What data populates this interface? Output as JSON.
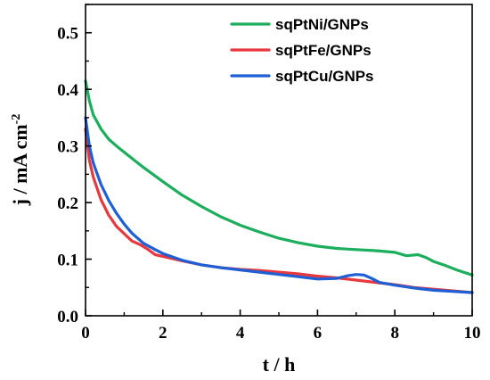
{
  "chart_data": {
    "type": "line",
    "xlabel": "t / h",
    "ylabel_main": "j / mA cm",
    "ylabel_sup": "-2",
    "xlim": [
      0,
      10
    ],
    "ylim": [
      0.0,
      0.55
    ],
    "xticks": [
      0,
      2,
      4,
      6,
      8,
      10
    ],
    "yticks": [
      0.0,
      0.1,
      0.2,
      0.3,
      0.4,
      0.5
    ],
    "xtick_labels": [
      "0",
      "2",
      "4",
      "6",
      "8",
      "10"
    ],
    "ytick_labels": [
      "0.0",
      "0.1",
      "0.2",
      "0.3",
      "0.4",
      "0.5"
    ],
    "grid": false,
    "legend_position": "top-right",
    "series": [
      {
        "name": "sqPtNi/GNPs",
        "color": "#1cae5c",
        "x": [
          0,
          0.1,
          0.2,
          0.4,
          0.6,
          0.8,
          1.0,
          1.5,
          2.0,
          2.5,
          3.0,
          3.5,
          4.0,
          4.5,
          5.0,
          5.5,
          6.0,
          6.5,
          7.0,
          7.5,
          8.0,
          8.3,
          8.6,
          8.8,
          9.0,
          9.3,
          9.6,
          10.0
        ],
        "y": [
          0.415,
          0.38,
          0.355,
          0.33,
          0.312,
          0.3,
          0.289,
          0.262,
          0.237,
          0.213,
          0.193,
          0.175,
          0.16,
          0.148,
          0.137,
          0.129,
          0.123,
          0.119,
          0.117,
          0.115,
          0.112,
          0.106,
          0.108,
          0.103,
          0.096,
          0.089,
          0.081,
          0.072
        ]
      },
      {
        "name": "sqPtFe/GNPs",
        "color": "#e8383d",
        "x": [
          0,
          0.1,
          0.2,
          0.4,
          0.6,
          0.8,
          1.0,
          1.2,
          1.4,
          1.6,
          1.8,
          2.0,
          2.5,
          3.0,
          3.5,
          4.0,
          4.5,
          5.0,
          5.5,
          6.0,
          6.5,
          7.0,
          7.5,
          8.0,
          8.5,
          9.0,
          9.5,
          10.0
        ],
        "y": [
          0.33,
          0.275,
          0.245,
          0.205,
          0.178,
          0.158,
          0.145,
          0.132,
          0.126,
          0.118,
          0.108,
          0.105,
          0.097,
          0.09,
          0.085,
          0.082,
          0.08,
          0.077,
          0.074,
          0.07,
          0.067,
          0.063,
          0.059,
          0.055,
          0.05,
          0.047,
          0.044,
          0.041
        ]
      },
      {
        "name": "sqPtCu/GNPs",
        "color": "#1f5fd6",
        "x": [
          0,
          0.1,
          0.2,
          0.4,
          0.6,
          0.8,
          1.0,
          1.2,
          1.5,
          1.8,
          2.0,
          2.5,
          3.0,
          3.5,
          4.0,
          4.5,
          5.0,
          5.5,
          6.0,
          6.5,
          6.8,
          7.0,
          7.2,
          7.4,
          7.6,
          8.0,
          8.5,
          9.0,
          9.5,
          10.0
        ],
        "y": [
          0.35,
          0.3,
          0.27,
          0.232,
          0.204,
          0.181,
          0.162,
          0.146,
          0.128,
          0.117,
          0.11,
          0.098,
          0.09,
          0.085,
          0.081,
          0.077,
          0.073,
          0.069,
          0.065,
          0.066,
          0.071,
          0.073,
          0.072,
          0.066,
          0.059,
          0.054,
          0.049,
          0.045,
          0.043,
          0.041
        ]
      }
    ]
  }
}
